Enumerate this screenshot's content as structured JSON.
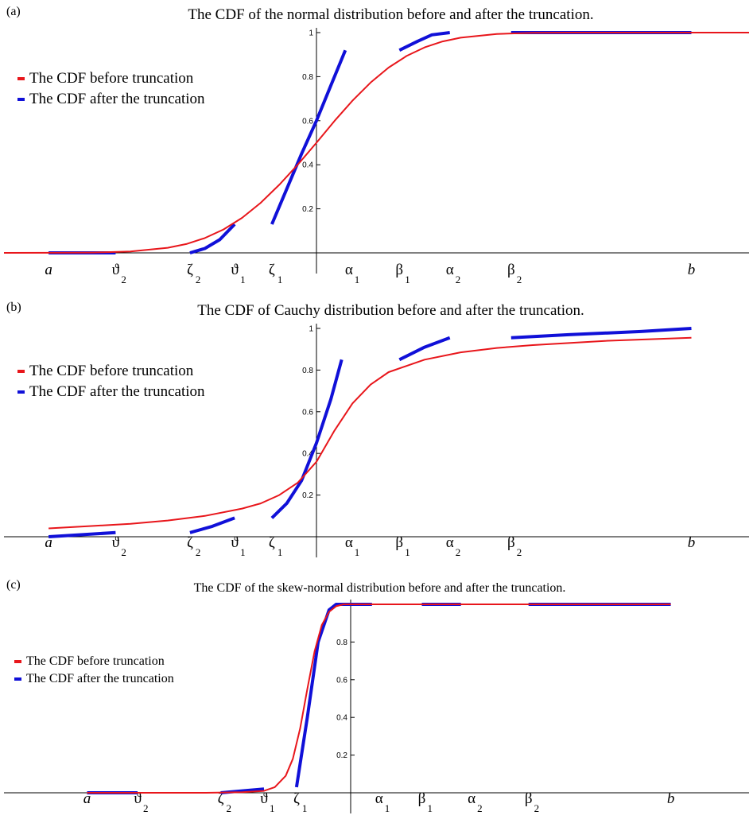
{
  "chart_data": [
    {
      "panel": "(a)",
      "type": "line",
      "title": "The CDF of the normal distribution before and after the truncation.",
      "xlim": [
        -4.2,
        6.0
      ],
      "ylim": [
        0,
        1
      ],
      "y_ticks": [
        "0.2",
        "0.4",
        "0.6",
        "0.8",
        "1"
      ],
      "y_tick_values": [
        0.2,
        0.4,
        0.6,
        0.8,
        1
      ],
      "x_markers": [
        {
          "symbol": "a",
          "sub": "",
          "x": -3.6
        },
        {
          "symbol": "ϑ",
          "sub": "2",
          "x": -2.7
        },
        {
          "symbol": "ζ",
          "sub": "2",
          "x": -1.7
        },
        {
          "symbol": "ϑ",
          "sub": "1",
          "x": -1.1
        },
        {
          "symbol": "ζ",
          "sub": "1",
          "x": -0.6
        },
        {
          "symbol": "α",
          "sub": "1",
          "x": 0.45
        },
        {
          "symbol": "β",
          "sub": "1",
          "x": 1.15
        },
        {
          "symbol": "α",
          "sub": "2",
          "x": 1.85
        },
        {
          "symbol": "β",
          "sub": "2",
          "x": 2.7
        },
        {
          "symbol": "b",
          "sub": "",
          "x": 5.2
        }
      ],
      "legend": [
        "The CDF before truncation",
        "The CDF after the truncation"
      ],
      "colors": {
        "before": "#e8161b",
        "after": "#1010d8",
        "overlap": "#7a2f86"
      },
      "series": [
        {
          "name": "The CDF before truncation",
          "x": [
            -4.2,
            -3.5,
            -3.0,
            -2.5,
            -2.0,
            -1.75,
            -1.5,
            -1.25,
            -1.0,
            -0.75,
            -0.5,
            -0.25,
            0.0,
            0.25,
            0.5,
            0.75,
            1.0,
            1.25,
            1.5,
            1.75,
            2.0,
            2.5,
            3.0,
            3.5,
            4.0,
            5.0,
            6.0
          ],
          "y": [
            0.0,
            0.0002,
            0.0013,
            0.006,
            0.023,
            0.04,
            0.067,
            0.106,
            0.159,
            0.227,
            0.309,
            0.401,
            0.5,
            0.599,
            0.691,
            0.773,
            0.841,
            0.894,
            0.933,
            0.96,
            0.977,
            0.994,
            0.999,
            1.0,
            1.0,
            1.0,
            1.0
          ]
        },
        {
          "name": "The CDF after the truncation",
          "segments": [
            {
              "x": [
                -3.6,
                -2.7
              ],
              "y": [
                0.0,
                0.0
              ]
            },
            {
              "x": [
                -1.7,
                -1.5,
                -1.3,
                -1.1
              ],
              "y": [
                0.0,
                0.02,
                0.06,
                0.13
              ]
            },
            {
              "x": [
                -0.6,
                -0.4,
                -0.2,
                0.0,
                0.2,
                0.4
              ],
              "y": [
                0.13,
                0.29,
                0.45,
                0.6,
                0.76,
                0.92
              ]
            },
            {
              "x": [
                1.15,
                1.4,
                1.6,
                1.85
              ],
              "y": [
                0.92,
                0.96,
                0.99,
                1.0
              ]
            },
            {
              "x": [
                2.7,
                5.2
              ],
              "y": [
                1.0,
                1.0
              ]
            }
          ]
        }
      ]
    },
    {
      "panel": "(b)",
      "type": "line",
      "title": "The CDF of Cauchy distribution before and after the truncation.",
      "xlim": [
        -4.2,
        6.0
      ],
      "ylim": [
        0,
        1
      ],
      "y_ticks": [
        "0.2",
        "0.4",
        "0.6",
        "0.8",
        "1"
      ],
      "y_tick_values": [
        0.2,
        0.4,
        0.6,
        0.8,
        1
      ],
      "x_markers": [
        {
          "symbol": "a",
          "sub": "",
          "x": -3.6
        },
        {
          "symbol": "ϑ",
          "sub": "2",
          "x": -2.7
        },
        {
          "symbol": "ζ",
          "sub": "2",
          "x": -1.7
        },
        {
          "symbol": "ϑ",
          "sub": "1",
          "x": -1.1
        },
        {
          "symbol": "ζ",
          "sub": "1",
          "x": -0.6
        },
        {
          "symbol": "α",
          "sub": "1",
          "x": 0.45
        },
        {
          "symbol": "β",
          "sub": "1",
          "x": 1.15
        },
        {
          "symbol": "α",
          "sub": "2",
          "x": 1.85
        },
        {
          "symbol": "β",
          "sub": "2",
          "x": 2.7
        },
        {
          "symbol": "b",
          "sub": "",
          "x": 5.2
        }
      ],
      "legend": [
        "The CDF before truncation",
        "The CDF after the truncation"
      ],
      "colors": {
        "before": "#e8161b",
        "after": "#1010d8"
      },
      "series": [
        {
          "name": "The CDF before truncation",
          "x": [
            -3.6,
            -3.0,
            -2.5,
            -2.0,
            -1.5,
            -1.0,
            -0.75,
            -0.5,
            -0.25,
            0.0,
            0.25,
            0.5,
            0.75,
            1.0,
            1.5,
            2.0,
            2.5,
            3.0,
            4.0,
            5.2
          ],
          "y": [
            0.04,
            0.052,
            0.062,
            0.078,
            0.1,
            0.135,
            0.16,
            0.2,
            0.26,
            0.36,
            0.51,
            0.64,
            0.73,
            0.79,
            0.85,
            0.885,
            0.906,
            0.92,
            0.94,
            0.955
          ]
        },
        {
          "name": "The CDF after the truncation",
          "segments": [
            {
              "x": [
                -3.6,
                -2.7
              ],
              "y": [
                0.0,
                0.02
              ]
            },
            {
              "x": [
                -1.7,
                -1.4,
                -1.1
              ],
              "y": [
                0.02,
                0.05,
                0.09
              ]
            },
            {
              "x": [
                -0.6,
                -0.4,
                -0.2,
                0.0,
                0.2,
                0.35
              ],
              "y": [
                0.09,
                0.16,
                0.27,
                0.45,
                0.66,
                0.85
              ]
            },
            {
              "x": [
                1.15,
                1.5,
                1.85
              ],
              "y": [
                0.85,
                0.91,
                0.955
              ]
            },
            {
              "x": [
                2.7,
                3.5,
                4.5,
                5.2
              ],
              "y": [
                0.955,
                0.97,
                0.985,
                1.0
              ]
            }
          ]
        }
      ]
    },
    {
      "panel": "(c)",
      "type": "line",
      "title": "The CDF of the skew-normal distribution before and after the truncation.",
      "xlim": [
        -4.8,
        5.6
      ],
      "ylim": [
        0,
        1
      ],
      "y_ticks": [
        "0.2",
        "0.4",
        "0.6",
        "0.8"
      ],
      "y_tick_values": [
        0.2,
        0.4,
        0.6,
        0.8
      ],
      "x_markers": [
        {
          "symbol": "a",
          "sub": "",
          "x": -3.65
        },
        {
          "symbol": "ϑ",
          "sub": "2",
          "x": -2.95
        },
        {
          "symbol": "ζ",
          "sub": "2",
          "x": -1.8
        },
        {
          "symbol": "ϑ",
          "sub": "1",
          "x": -1.2
        },
        {
          "symbol": "ζ",
          "sub": "1",
          "x": -0.75
        },
        {
          "symbol": "α",
          "sub": "1",
          "x": 0.4
        },
        {
          "symbol": "β",
          "sub": "1",
          "x": 1.0
        },
        {
          "symbol": "α",
          "sub": "2",
          "x": 1.7
        },
        {
          "symbol": "β",
          "sub": "2",
          "x": 2.5
        },
        {
          "symbol": "b",
          "sub": "",
          "x": 4.5
        }
      ],
      "legend": [
        "The CDF before truncation",
        "The CDF after the truncation"
      ],
      "colors": {
        "before": "#e8161b",
        "after": "#1010d8",
        "overlap": "#7a2f86"
      },
      "series": [
        {
          "name": "The CDF before truncation",
          "x": [
            -3.65,
            -2.0,
            -1.5,
            -1.2,
            -1.05,
            -0.9,
            -0.8,
            -0.7,
            -0.6,
            -0.5,
            -0.4,
            -0.3,
            -0.2,
            -0.1,
            0.0,
            0.3,
            1.0,
            2.0,
            4.5
          ],
          "y": [
            0.0,
            0.0,
            0.003,
            0.01,
            0.03,
            0.09,
            0.18,
            0.34,
            0.55,
            0.75,
            0.89,
            0.96,
            0.99,
            1.0,
            1.0,
            1.0,
            1.0,
            1.0,
            1.0
          ]
        },
        {
          "name": "The CDF after the truncation",
          "segments": [
            {
              "x": [
                -3.65,
                -2.95
              ],
              "y": [
                0.0,
                0.0
              ]
            },
            {
              "x": [
                -1.8,
                -1.2
              ],
              "y": [
                0.0,
                0.02
              ]
            },
            {
              "x": [
                -0.75,
                -0.6,
                -0.45,
                -0.3,
                -0.2,
                0.3
              ],
              "y": [
                0.03,
                0.4,
                0.8,
                0.97,
                1.0,
                1.0
              ]
            },
            {
              "x": [
                1.0,
                1.55
              ],
              "y": [
                1.0,
                1.0
              ]
            },
            {
              "x": [
                2.5,
                4.5
              ],
              "y": [
                1.0,
                1.0
              ]
            }
          ]
        }
      ]
    }
  ]
}
